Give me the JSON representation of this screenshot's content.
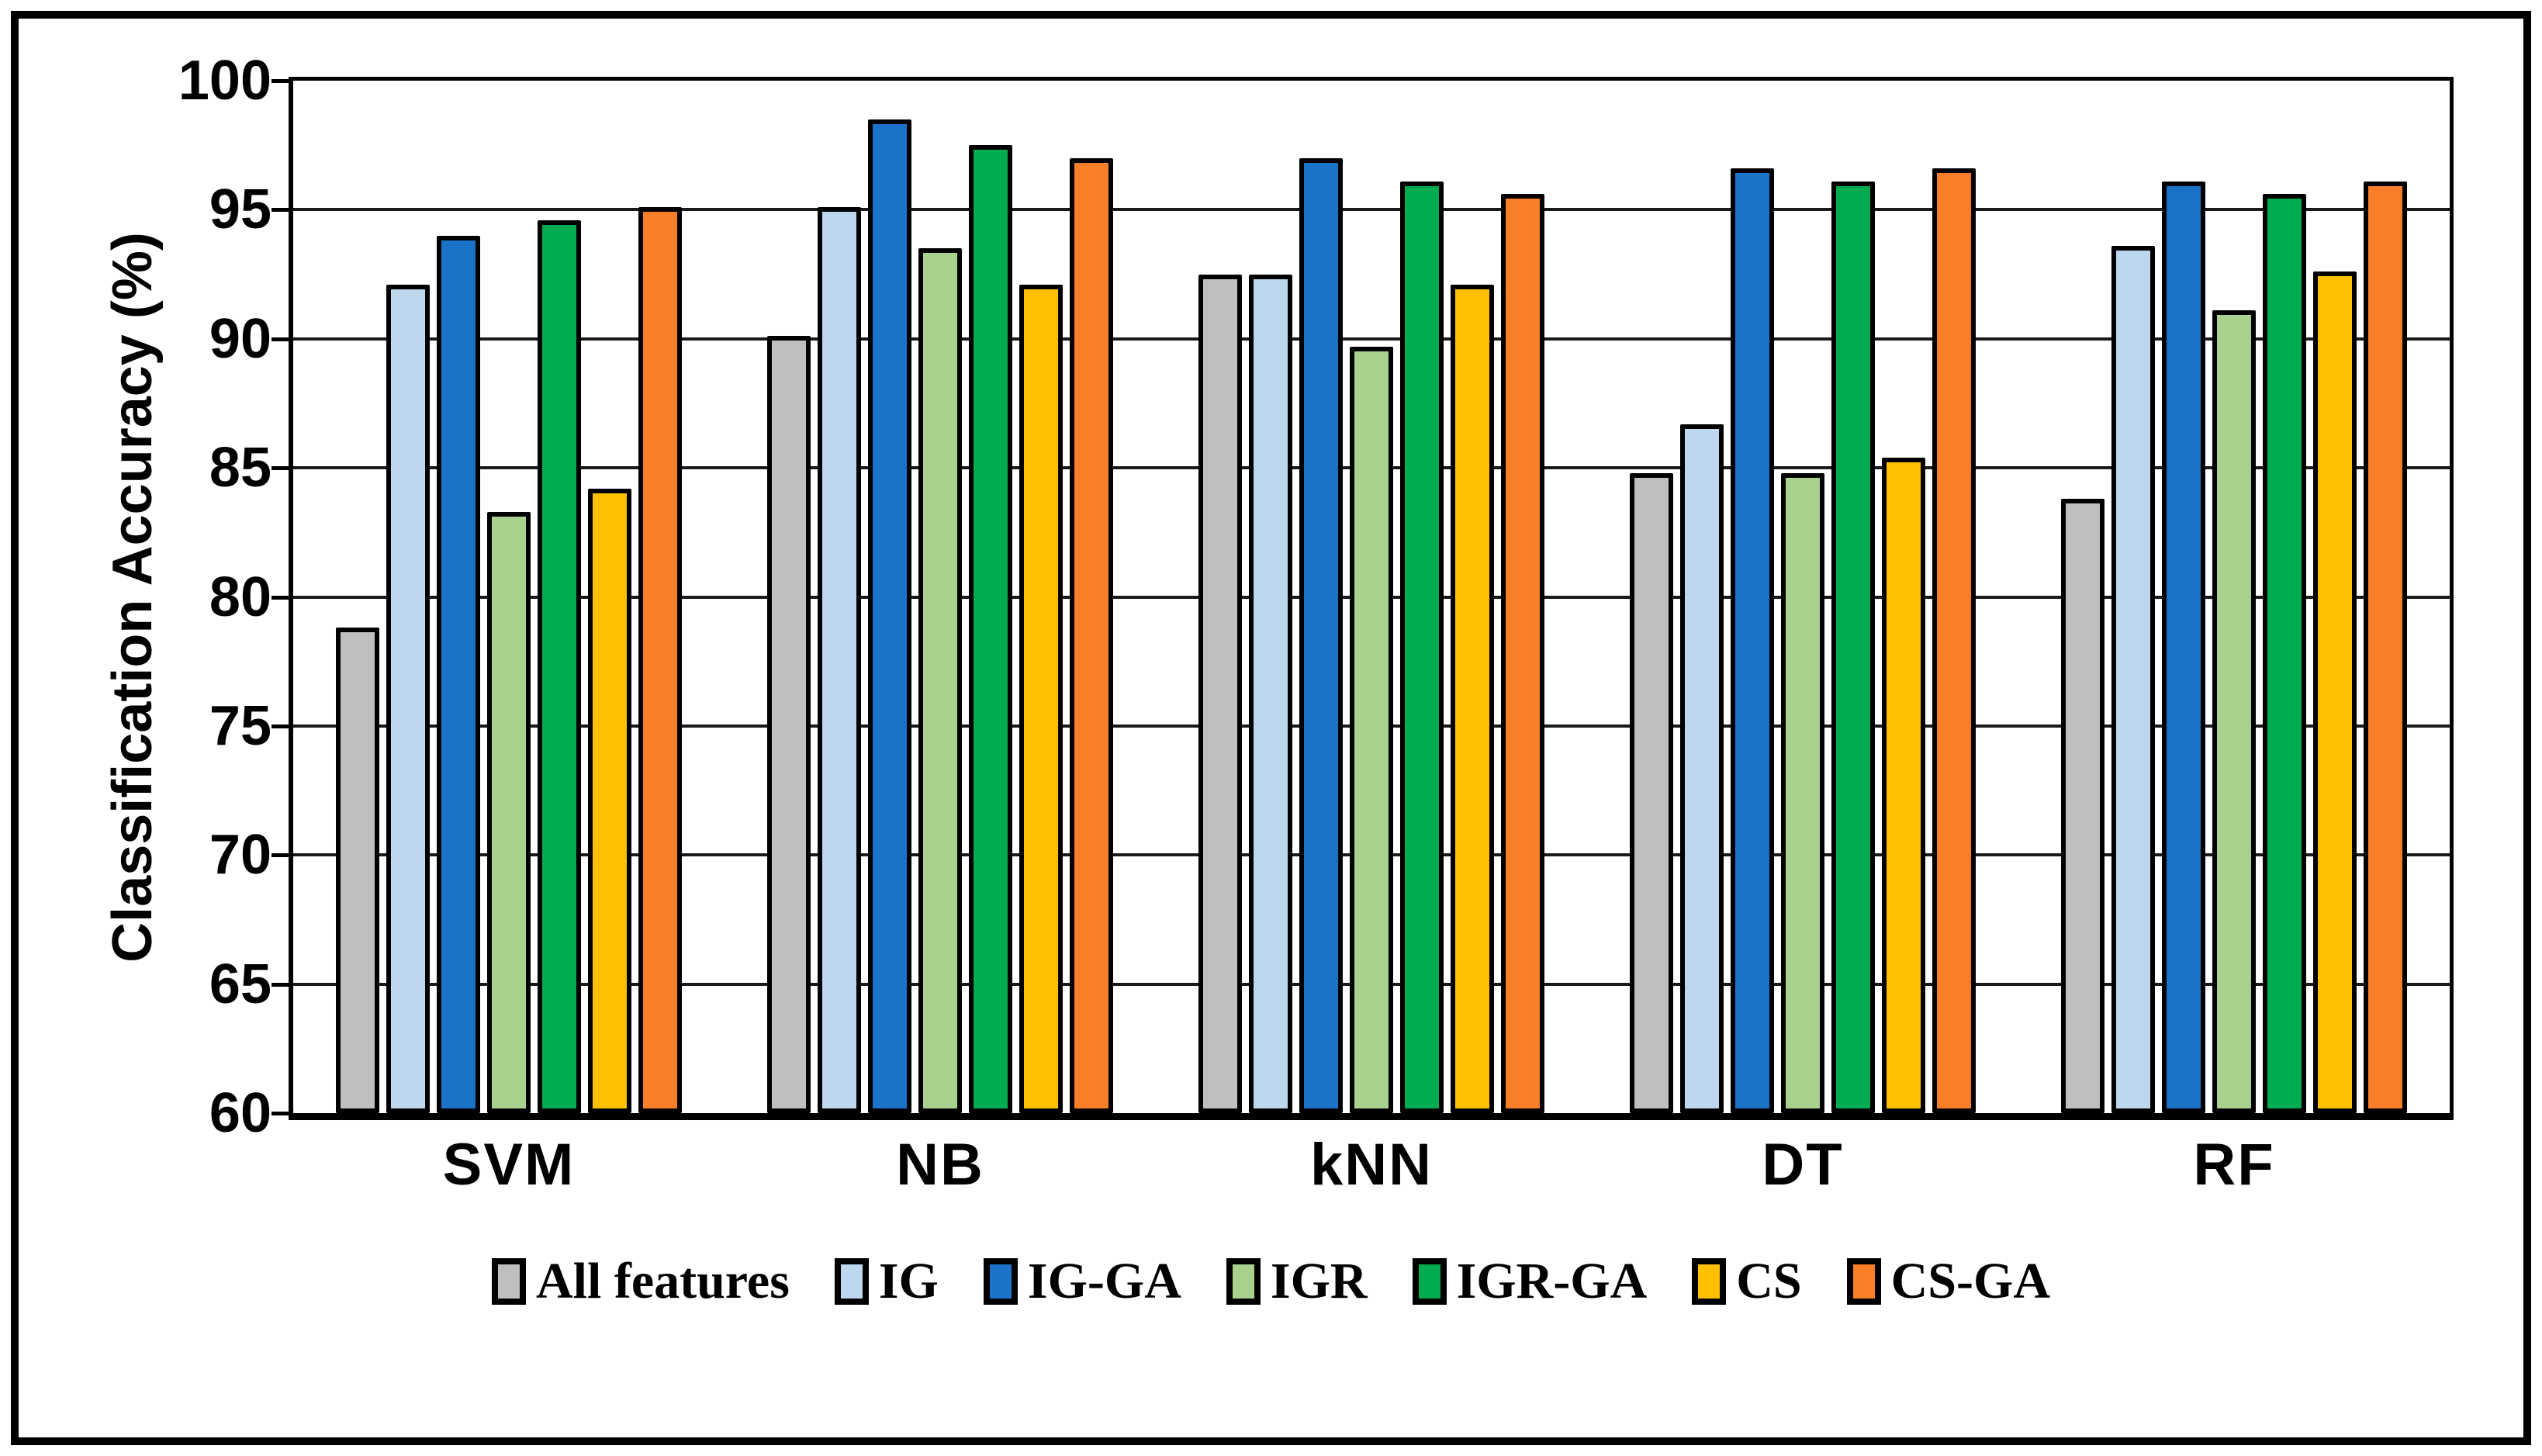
{
  "chart_data": {
    "type": "bar",
    "title": "",
    "xlabel": "",
    "ylabel": "Classification Accuracy (%)",
    "ylim": [
      60,
      100
    ],
    "ytick_step": 5,
    "ytick_labels": [
      "60",
      "65",
      "70",
      "75",
      "80",
      "85",
      "90",
      "95",
      "100"
    ],
    "grid": "horizontal",
    "legend_position": "bottom",
    "categories": [
      "SVM",
      "NB",
      "kNN",
      "DT",
      "RF"
    ],
    "series": [
      {
        "name": "All features",
        "color": "#BFBFBF",
        "values": [
          78.8,
          90.1,
          92.5,
          84.8,
          83.8
        ]
      },
      {
        "name": "IG",
        "color": "#BDD7EE",
        "values": [
          92.1,
          95.1,
          92.5,
          86.7,
          93.6
        ]
      },
      {
        "name": "IG-GA",
        "color": "#1A73C8",
        "values": [
          94.0,
          98.5,
          97.0,
          96.6,
          96.1
        ]
      },
      {
        "name": "IGR",
        "color": "#A9D18E",
        "values": [
          83.3,
          93.5,
          89.7,
          84.8,
          91.1
        ]
      },
      {
        "name": "IGR-GA",
        "color": "#00AC4F",
        "values": [
          94.6,
          97.5,
          96.1,
          96.1,
          95.6
        ]
      },
      {
        "name": "CS",
        "color": "#FFC000",
        "values": [
          84.2,
          92.1,
          92.1,
          85.4,
          92.6
        ]
      },
      {
        "name": "CS-GA",
        "color": "#F87E27",
        "values": [
          95.1,
          97.0,
          95.6,
          96.6,
          96.1
        ]
      }
    ],
    "colors": {
      "axis": "#000000",
      "gridline": "#1a1a1a",
      "background": "#ffffff"
    }
  }
}
